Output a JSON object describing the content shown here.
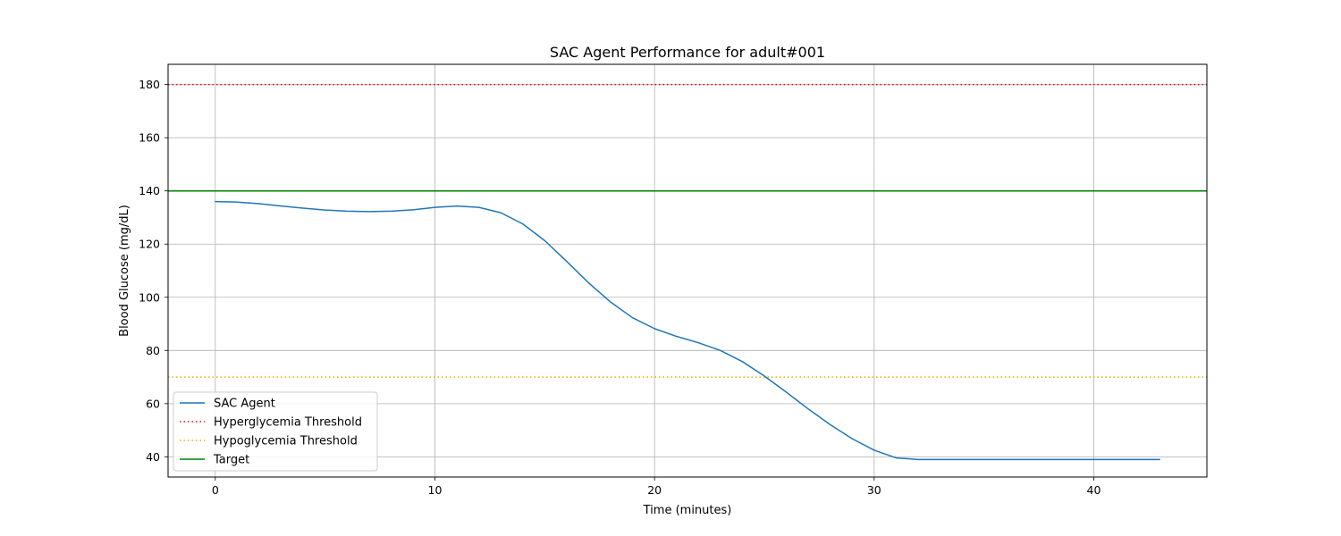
{
  "chart_data": {
    "type": "line",
    "title": "SAC Agent Performance for adult#001",
    "xlabel": "Time (minutes)",
    "ylabel": "Blood Glucose (mg/dL)",
    "xlim": [
      -2.15,
      45.15
    ],
    "ylim": [
      32.4,
      187.6
    ],
    "xticks": [
      0,
      10,
      20,
      30,
      40
    ],
    "yticks": [
      40,
      60,
      80,
      100,
      120,
      140,
      160,
      180
    ],
    "grid": true,
    "legend_position": "lower-left",
    "series": [
      {
        "name": "SAC Agent",
        "color": "#1f77b4",
        "style": "solid",
        "x": [
          0,
          1,
          2,
          3,
          4,
          5,
          6,
          7,
          8,
          9,
          10,
          11,
          12,
          13,
          14,
          15,
          16,
          17,
          18,
          19,
          20,
          21,
          22,
          23,
          24,
          25,
          26,
          27,
          28,
          29,
          30,
          31,
          32,
          33,
          34,
          35,
          36,
          37,
          38,
          39,
          40,
          41,
          42,
          43
        ],
        "y": [
          136,
          135.8,
          135.2,
          134.3,
          133.5,
          132.8,
          132.4,
          132.2,
          132.4,
          132.9,
          133.8,
          134.3,
          133.8,
          131.8,
          127.6,
          121.3,
          113.5,
          105.4,
          98.2,
          92.3,
          88.2,
          85.3,
          82.9,
          80,
          75.8,
          70.4,
          64.3,
          58,
          52.1,
          46.8,
          42.5,
          39.6,
          39,
          39,
          39,
          39,
          39,
          39,
          39,
          39,
          39,
          39,
          39,
          39
        ]
      }
    ],
    "hlines": [
      {
        "name": "Hyperglycemia Threshold",
        "y": 180,
        "color": "#ff0000",
        "style": "dotted"
      },
      {
        "name": "Hypoglycemia Threshold",
        "y": 70,
        "color": "#ffa500",
        "style": "dotted"
      },
      {
        "name": "Target",
        "y": 140,
        "color": "#008000",
        "style": "solid"
      }
    ]
  }
}
